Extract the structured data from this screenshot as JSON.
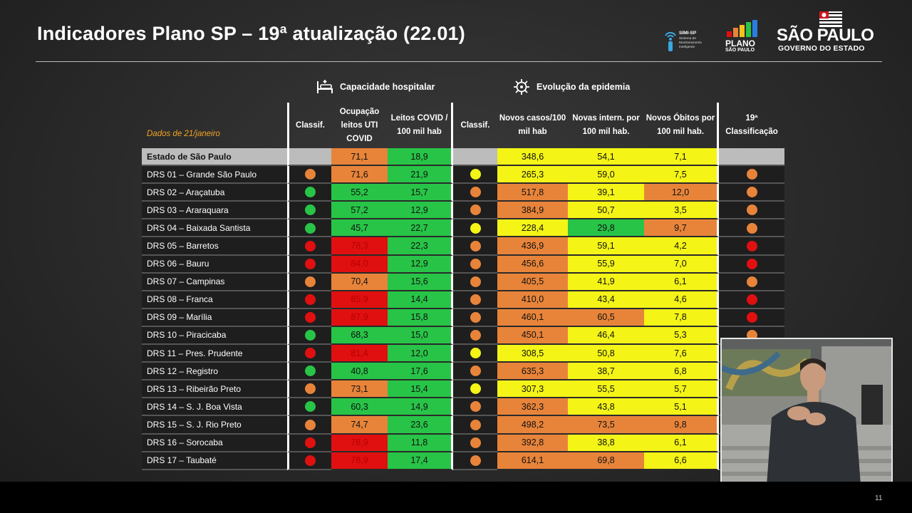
{
  "header": {
    "title": "Indicadores Plano SP – 19ª atualização (22.01)",
    "logos": {
      "simi_name": "SIMI-SP",
      "simi_sub": "Sistema de Monitoramento Inteligente",
      "plano_word": "PLANO",
      "plano_sub": "SÃO PAULO",
      "sp_name": "SÃO PAULO",
      "sp_gov": "GOVERNO DO ESTADO"
    }
  },
  "sections": {
    "hospital": "Capacidade hospitalar",
    "epidemic": "Evolução da epidemia"
  },
  "table": {
    "date_note": "Dados de 21/janeiro",
    "headers": {
      "classif_hosp": "Classif.",
      "ocupacao": "Ocupação leitos UTI COVID",
      "leitos": "Leitos COVID / 100 mil hab",
      "classif_epi": "Classif.",
      "novos_casos": "Novos casos/100 mil hab",
      "novas_intern": "Novas intern. por 100 mil hab.",
      "novos_obitos": "Novos Óbitos por 100 mil hab.",
      "classificacao": "19ª Classificação"
    },
    "colors": {
      "orange": "#e8843a",
      "green": "#28c447",
      "yellow": "#f4f417",
      "red": "#e01010"
    },
    "rows": [
      {
        "name": "Estado de São Paulo",
        "c1": "",
        "ocup": "71,1",
        "ocup_c": "orange",
        "leitos": "18,9",
        "leitos_c": "green",
        "c2": "",
        "casos": "348,6",
        "casos_c": "yellow",
        "intern": "54,1",
        "intern_c": "yellow",
        "obitos": "7,1",
        "obitos_c": "yellow",
        "cls": ""
      },
      {
        "name": "DRS 01 – Grande São Paulo",
        "c1": "orange",
        "ocup": "71,6",
        "ocup_c": "orange",
        "leitos": "21,9",
        "leitos_c": "green",
        "c2": "yellow",
        "casos": "265,3",
        "casos_c": "yellow",
        "intern": "59,0",
        "intern_c": "yellow",
        "obitos": "7,5",
        "obitos_c": "yellow",
        "cls": "orange"
      },
      {
        "name": "DRS 02 – Araçatuba",
        "c1": "green",
        "ocup": "55,2",
        "ocup_c": "green",
        "leitos": "15,7",
        "leitos_c": "green",
        "c2": "orange",
        "casos": "517,8",
        "casos_c": "orange",
        "intern": "39,1",
        "intern_c": "yellow",
        "obitos": "12,0",
        "obitos_c": "orange",
        "cls": "orange"
      },
      {
        "name": "DRS 03 – Araraquara",
        "c1": "green",
        "ocup": "57,2",
        "ocup_c": "green",
        "leitos": "12,9",
        "leitos_c": "green",
        "c2": "orange",
        "casos": "384,9",
        "casos_c": "orange",
        "intern": "50,7",
        "intern_c": "yellow",
        "obitos": "3,5",
        "obitos_c": "yellow",
        "cls": "orange"
      },
      {
        "name": "DRS 04 – Baixada Santista",
        "c1": "green",
        "ocup": "45,7",
        "ocup_c": "green",
        "leitos": "22,7",
        "leitos_c": "green",
        "c2": "yellow",
        "casos": "228,4",
        "casos_c": "yellow",
        "intern": "29,8",
        "intern_c": "green",
        "obitos": "9,7",
        "obitos_c": "orange",
        "cls": "orange"
      },
      {
        "name": "DRS 05 – Barretos",
        "c1": "red",
        "ocup": "78,3",
        "ocup_c": "red",
        "leitos": "22,3",
        "leitos_c": "green",
        "c2": "orange",
        "casos": "436,9",
        "casos_c": "orange",
        "intern": "59,1",
        "intern_c": "yellow",
        "obitos": "4,2",
        "obitos_c": "yellow",
        "cls": "red"
      },
      {
        "name": "DRS 06 – Bauru",
        "c1": "red",
        "ocup": "84,0",
        "ocup_c": "red",
        "leitos": "12,9",
        "leitos_c": "green",
        "c2": "orange",
        "casos": "456,6",
        "casos_c": "orange",
        "intern": "55,9",
        "intern_c": "yellow",
        "obitos": "7,0",
        "obitos_c": "yellow",
        "cls": "red"
      },
      {
        "name": "DRS 07 – Campinas",
        "c1": "orange",
        "ocup": "70,4",
        "ocup_c": "orange",
        "leitos": "15,6",
        "leitos_c": "green",
        "c2": "orange",
        "casos": "405,5",
        "casos_c": "orange",
        "intern": "41,9",
        "intern_c": "yellow",
        "obitos": "6,1",
        "obitos_c": "yellow",
        "cls": "orange"
      },
      {
        "name": "DRS 08 – Franca",
        "c1": "red",
        "ocup": "85,9",
        "ocup_c": "red",
        "leitos": "14,4",
        "leitos_c": "green",
        "c2": "orange",
        "casos": "410,0",
        "casos_c": "orange",
        "intern": "43,4",
        "intern_c": "yellow",
        "obitos": "4,6",
        "obitos_c": "yellow",
        "cls": "red"
      },
      {
        "name": "DRS 09 – Marília",
        "c1": "red",
        "ocup": "87,9",
        "ocup_c": "red",
        "leitos": "15,8",
        "leitos_c": "green",
        "c2": "orange",
        "casos": "460,1",
        "casos_c": "orange",
        "intern": "60,5",
        "intern_c": "orange",
        "obitos": "7,8",
        "obitos_c": "yellow",
        "cls": "red"
      },
      {
        "name": "DRS 10 – Piracicaba",
        "c1": "green",
        "ocup": "68,3",
        "ocup_c": "green",
        "leitos": "15,0",
        "leitos_c": "green",
        "c2": "orange",
        "casos": "450,1",
        "casos_c": "orange",
        "intern": "46,4",
        "intern_c": "yellow",
        "obitos": "5,3",
        "obitos_c": "yellow",
        "cls": "orange"
      },
      {
        "name": "DRS 11 – Pres. Prudente",
        "c1": "red",
        "ocup": "81,4",
        "ocup_c": "red",
        "leitos": "12,0",
        "leitos_c": "green",
        "c2": "yellow",
        "casos": "308,5",
        "casos_c": "yellow",
        "intern": "50,8",
        "intern_c": "yellow",
        "obitos": "7,6",
        "obitos_c": "yellow",
        "cls": ""
      },
      {
        "name": "DRS 12 – Registro",
        "c1": "green",
        "ocup": "40,8",
        "ocup_c": "green",
        "leitos": "17,6",
        "leitos_c": "green",
        "c2": "orange",
        "casos": "635,3",
        "casos_c": "orange",
        "intern": "38,7",
        "intern_c": "yellow",
        "obitos": "6,8",
        "obitos_c": "yellow",
        "cls": ""
      },
      {
        "name": "DRS 13 – Ribeirão Preto",
        "c1": "orange",
        "ocup": "73,1",
        "ocup_c": "orange",
        "leitos": "15,4",
        "leitos_c": "green",
        "c2": "yellow",
        "casos": "307,3",
        "casos_c": "yellow",
        "intern": "55,5",
        "intern_c": "yellow",
        "obitos": "5,7",
        "obitos_c": "yellow",
        "cls": ""
      },
      {
        "name": "DRS 14 – S. J. Boa Vista",
        "c1": "green",
        "ocup": "60,3",
        "ocup_c": "green",
        "leitos": "14,9",
        "leitos_c": "green",
        "c2": "orange",
        "casos": "362,3",
        "casos_c": "orange",
        "intern": "43,8",
        "intern_c": "yellow",
        "obitos": "5,1",
        "obitos_c": "yellow",
        "cls": ""
      },
      {
        "name": "DRS 15 – S. J. Rio Preto",
        "c1": "orange",
        "ocup": "74,7",
        "ocup_c": "orange",
        "leitos": "23,6",
        "leitos_c": "green",
        "c2": "orange",
        "casos": "498,2",
        "casos_c": "orange",
        "intern": "73,5",
        "intern_c": "orange",
        "obitos": "9,8",
        "obitos_c": "orange",
        "cls": ""
      },
      {
        "name": "DRS 16 – Sorocaba",
        "c1": "red",
        "ocup": "78,9",
        "ocup_c": "red",
        "leitos": "11,8",
        "leitos_c": "green",
        "c2": "orange",
        "casos": "392,8",
        "casos_c": "orange",
        "intern": "38,8",
        "intern_c": "yellow",
        "obitos": "6,1",
        "obitos_c": "yellow",
        "cls": ""
      },
      {
        "name": "DRS 17 – Taubaté",
        "c1": "red",
        "ocup": "78,9",
        "ocup_c": "red",
        "leitos": "17,4",
        "leitos_c": "green",
        "c2": "orange",
        "casos": "614,1",
        "casos_c": "orange",
        "intern": "69,8",
        "intern_c": "orange",
        "obitos": "6,6",
        "obitos_c": "yellow",
        "cls": ""
      }
    ]
  },
  "footer": {
    "page_number": "11"
  }
}
